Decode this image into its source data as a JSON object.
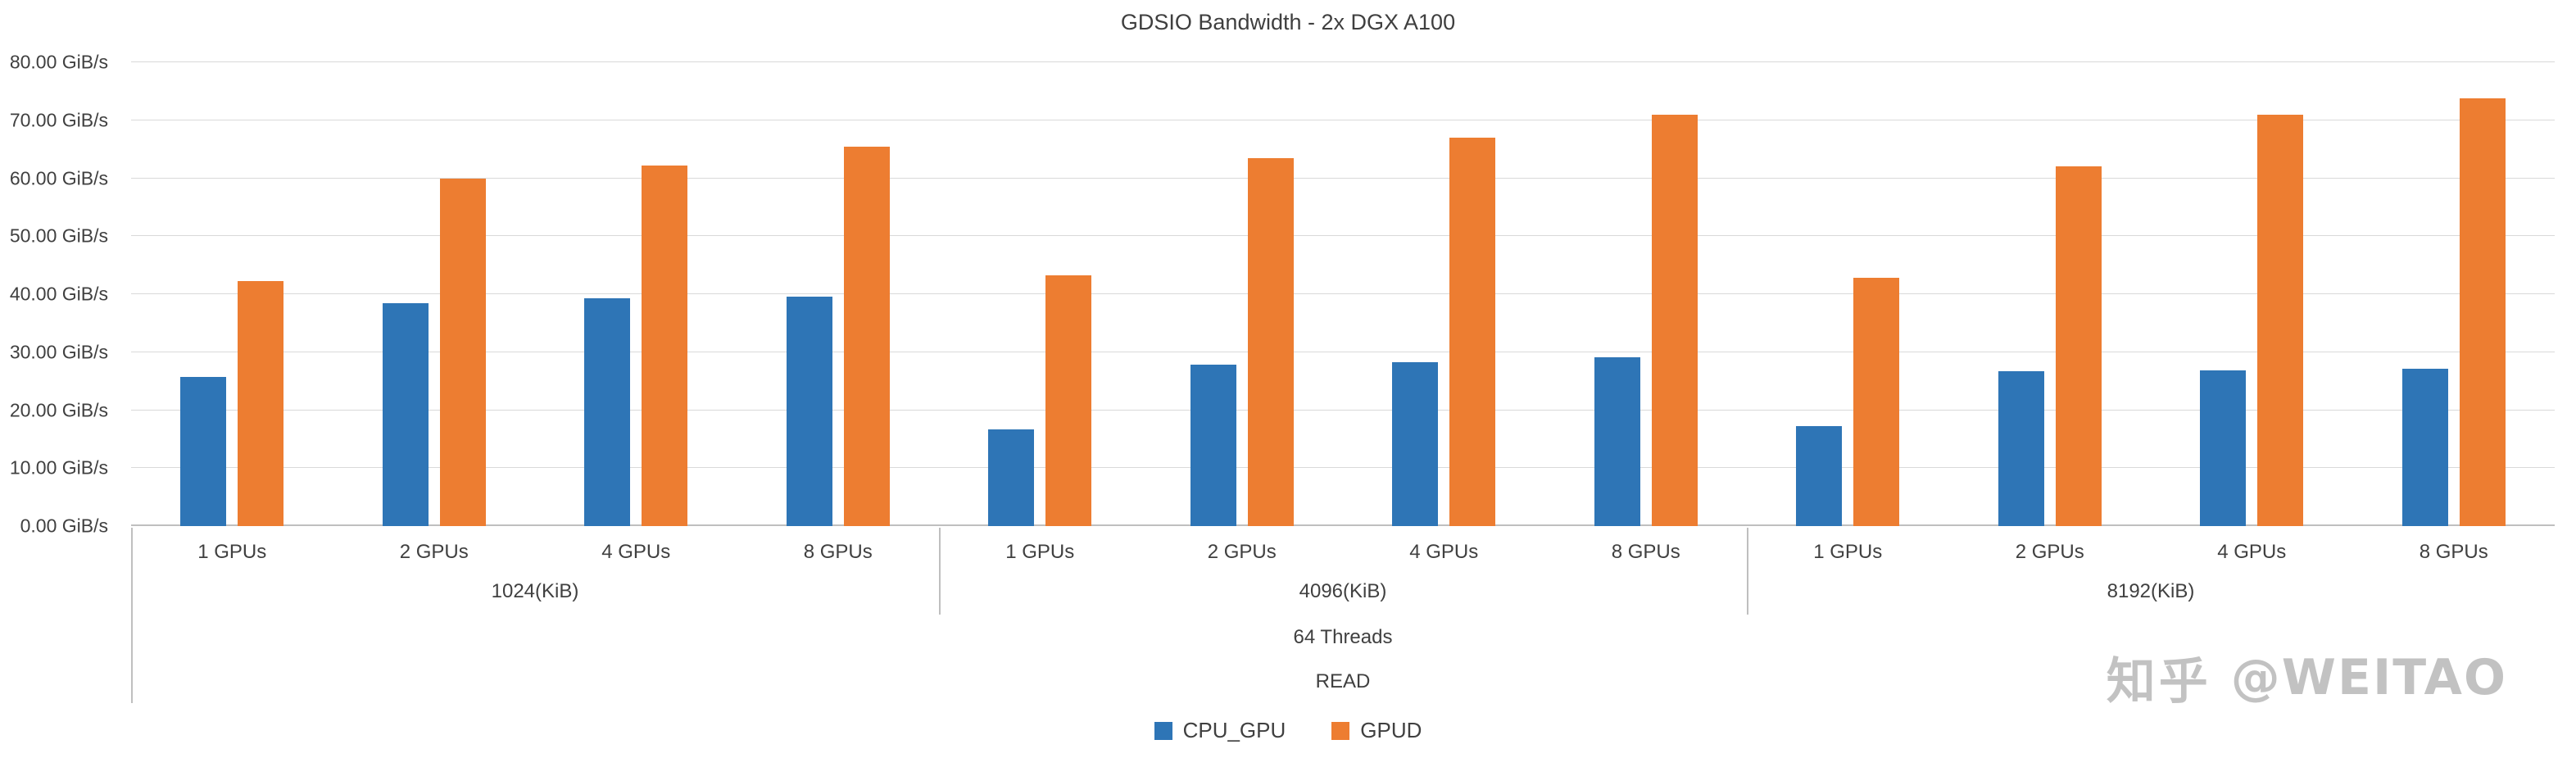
{
  "title": "GDSIO Bandwidth - 2x DGX A100",
  "watermark": {
    "brand": "知乎",
    "handle": "@WEITAO"
  },
  "colors": {
    "cpu_gpu": "#2E75B6",
    "gpud": "#ED7D31",
    "gridline": "#D9D9D9",
    "axis_line": "#BFBFBF",
    "text": "#404040"
  },
  "chart_data": {
    "type": "bar",
    "title": "GDSIO Bandwidth - 2x DGX A100",
    "ylabel": "GiB/s",
    "ylim": [
      0,
      80
    ],
    "ytick_step": 10,
    "grid": true,
    "legend_position": "bottom",
    "ytick_labels": [
      "0.00 GiB/s",
      "10.00 GiB/s",
      "20.00 GiB/s",
      "30.00 GiB/s",
      "40.00 GiB/s",
      "50.00 GiB/s",
      "60.00 GiB/s",
      "70.00 GiB/s",
      "80.00 GiB/s"
    ],
    "categories": [
      "1 GPUs",
      "2 GPUs",
      "4 GPUs",
      "8 GPUs",
      "1 GPUs",
      "2 GPUs",
      "4 GPUs",
      "8 GPUs",
      "1 GPUs",
      "2 GPUs",
      "4 GPUs",
      "8 GPUs"
    ],
    "groups": [
      "1024(KiB)",
      "4096(KiB)",
      "8192(KiB)"
    ],
    "axis_levels": [
      "64 Threads",
      "READ"
    ],
    "series": [
      {
        "name": "CPU_GPU",
        "color": "#2E75B6",
        "values": [
          25.7,
          38.4,
          39.3,
          39.6,
          16.7,
          27.8,
          28.3,
          29.1,
          17.2,
          26.7,
          26.9,
          27.1
        ]
      },
      {
        "name": "GPUD",
        "color": "#ED7D31",
        "values": [
          42.3,
          59.9,
          62.2,
          65.5,
          43.2,
          63.5,
          67.0,
          70.9,
          42.8,
          62.0,
          70.9,
          73.8
        ]
      }
    ]
  }
}
